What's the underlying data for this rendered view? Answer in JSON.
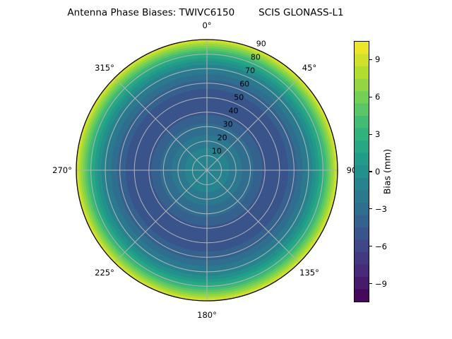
{
  "chart_data": {
    "type": "polar_contour_heatmap",
    "title": {
      "left": "Antenna Phase Biases: TWIVC6150",
      "right": "SCIS GLONASS-L1"
    },
    "angular_ticks": [
      {
        "label": "0°",
        "angle_deg": 0
      },
      {
        "label": "45°",
        "angle_deg": 45
      },
      {
        "label": "90",
        "angle_deg": 90
      },
      {
        "label": "135°",
        "angle_deg": 135
      },
      {
        "label": "180°",
        "angle_deg": 180
      },
      {
        "label": "225°",
        "angle_deg": 225
      },
      {
        "label": "270°",
        "angle_deg": 270
      },
      {
        "label": "315°",
        "angle_deg": 315
      }
    ],
    "radial_axis": {
      "min": 0,
      "max": 90,
      "grid_step": 10,
      "label_angle_deg": 22.5
    },
    "radial_ticks": [
      {
        "label": "10",
        "value": 10
      },
      {
        "label": "20",
        "value": 20
      },
      {
        "label": "30",
        "value": 30
      },
      {
        "label": "40",
        "value": 40
      },
      {
        "label": "50",
        "value": 50
      },
      {
        "label": "60",
        "value": 60
      },
      {
        "label": "70",
        "value": 70
      },
      {
        "label": "80",
        "value": 80
      },
      {
        "label": "90",
        "value": 90
      }
    ],
    "colorbar": {
      "label": "Bias (mm)",
      "vmin": -10.5,
      "vmax": 10.5,
      "bands": 21,
      "tick_values": [
        9,
        6,
        3,
        0,
        -3,
        -6,
        -9
      ],
      "tick_labels": [
        "9",
        "6",
        "3",
        "0",
        "−3",
        "−6",
        "−9"
      ]
    },
    "bias_profile_mm": [
      {
        "zenith_deg": 0,
        "bias_mm": -1.2
      },
      {
        "zenith_deg": 10,
        "bias_mm": -1.4
      },
      {
        "zenith_deg": 15,
        "bias_mm": -1.5
      },
      {
        "zenith_deg": 24,
        "bias_mm": -2.5
      },
      {
        "zenith_deg": 32,
        "bias_mm": -3.5
      },
      {
        "zenith_deg": 38,
        "bias_mm": -4.5
      },
      {
        "zenith_deg": 42,
        "bias_mm": -4.9
      },
      {
        "zenith_deg": 48,
        "bias_mm": -5.1
      },
      {
        "zenith_deg": 56,
        "bias_mm": -4.5
      },
      {
        "zenith_deg": 61,
        "bias_mm": -3.7
      },
      {
        "zenith_deg": 66,
        "bias_mm": -2.5
      },
      {
        "zenith_deg": 70,
        "bias_mm": -1.3
      },
      {
        "zenith_deg": 73,
        "bias_mm": -0.4
      },
      {
        "zenith_deg": 76,
        "bias_mm": 0.9
      },
      {
        "zenith_deg": 79,
        "bias_mm": 2.4
      },
      {
        "zenith_deg": 82,
        "bias_mm": 4.2
      },
      {
        "zenith_deg": 85,
        "bias_mm": 6.2
      },
      {
        "zenith_deg": 88,
        "bias_mm": 8.4
      },
      {
        "zenith_deg": 90,
        "bias_mm": 10.0
      }
    ],
    "colormap": {
      "name": "viridis",
      "anchors": [
        "#440154",
        "#482878",
        "#3e4989",
        "#31688e",
        "#26828e",
        "#1f9e89",
        "#35b779",
        "#6ece58",
        "#b5de2b",
        "#fde725"
      ]
    },
    "grid_color": "#b3b3b3",
    "outline_color": "#000000",
    "background": "#ffffff"
  }
}
